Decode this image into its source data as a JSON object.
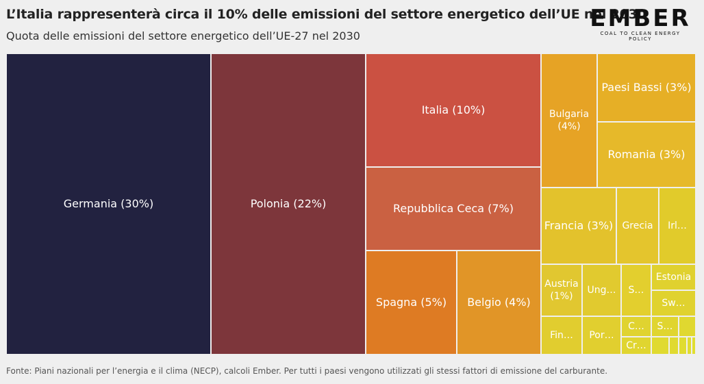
{
  "title": "L’Italia rappresenterà circa il 10% delle emissioni del settore energetico dell’UE nel 2030",
  "subtitle": "Quota delle emissioni del settore energetico dell’UE-27 nel 2030",
  "logo": {
    "word": "EMBER",
    "tagline": "COAL TO CLEAN ENERGY POLICY"
  },
  "source": "Fonte: Piani nazionali per l’energia e il clima (NECP), calcoli Ember. Per tutti i paesi vengono utilizzati gli stessi fattori di emissione del carburante.",
  "chart_data": {
    "type": "treemap",
    "title": "L’Italia rappresenterà circa il 10% delle emissioni del settore energetico dell’UE nel 2030",
    "subtitle": "Quota delle emissioni del settore energetico dell’UE-27 nel 2030",
    "unit": "%",
    "items": [
      {
        "label": "Germania (30%)",
        "value": 30,
        "color": "#222240"
      },
      {
        "label": "Polonia (22%)",
        "value": 22,
        "color": "#7d363b"
      },
      {
        "label": "Italia (10%)",
        "value": 10,
        "color": "#cb5142"
      },
      {
        "label": "Repubblica Ceca (7%)",
        "value": 7,
        "color": "#ca6142"
      },
      {
        "label": "Spagna (5%)",
        "value": 5,
        "color": "#de7b23"
      },
      {
        "label": "Belgio (4%)",
        "value": 4,
        "color": "#e19527"
      },
      {
        "label": "Bulgaria (4%)",
        "value": 4,
        "color": "#e6a325"
      },
      {
        "label": "Paesi Bassi (3%)",
        "value": 3,
        "color": "#e6af26"
      },
      {
        "label": "Romania (3%)",
        "value": 3,
        "color": "#e6b92a"
      },
      {
        "label": "Francia (3%)",
        "value": 3,
        "color": "#e3c22c"
      },
      {
        "label": "Grecia",
        "value": 2,
        "color": "#e4c52d"
      },
      {
        "label": "Irl…",
        "value": 2,
        "color": "#e1cb2b"
      },
      {
        "label": "Austria (1%)",
        "value": 1,
        "color": "#e1c730"
      },
      {
        "label": "Ung…",
        "value": 1,
        "color": "#e1ca2f"
      },
      {
        "label": "S…",
        "value": 1,
        "color": "#e3cf2e"
      },
      {
        "label": "Estonia",
        "value": 1,
        "color": "#e0d12f"
      },
      {
        "label": "Sw…",
        "value": 1,
        "color": "#e0d22f"
      },
      {
        "label": "Fin…",
        "value": 1,
        "color": "#e1cd2f"
      },
      {
        "label": "Por…",
        "value": 1,
        "color": "#e1cf2f"
      },
      {
        "label": "C…",
        "value": 0.5,
        "color": "#e0d330"
      },
      {
        "label": "S…",
        "value": 0.5,
        "color": "#e0d530"
      },
      {
        "label": "Cr…",
        "value": 0.5,
        "color": "#e0d530"
      },
      {
        "label": "",
        "value": 0.3,
        "color": "#e0d830"
      },
      {
        "label": "",
        "value": 0.2,
        "color": "#e0da30"
      },
      {
        "label": "",
        "value": 0.2,
        "color": "#e0da30"
      },
      {
        "label": "",
        "value": 0.2,
        "color": "#e0dc30"
      },
      {
        "label": "",
        "value": 0.1,
        "color": "#e0dc30"
      },
      {
        "label": "",
        "value": 0.1,
        "color": "#e0de30"
      }
    ]
  }
}
